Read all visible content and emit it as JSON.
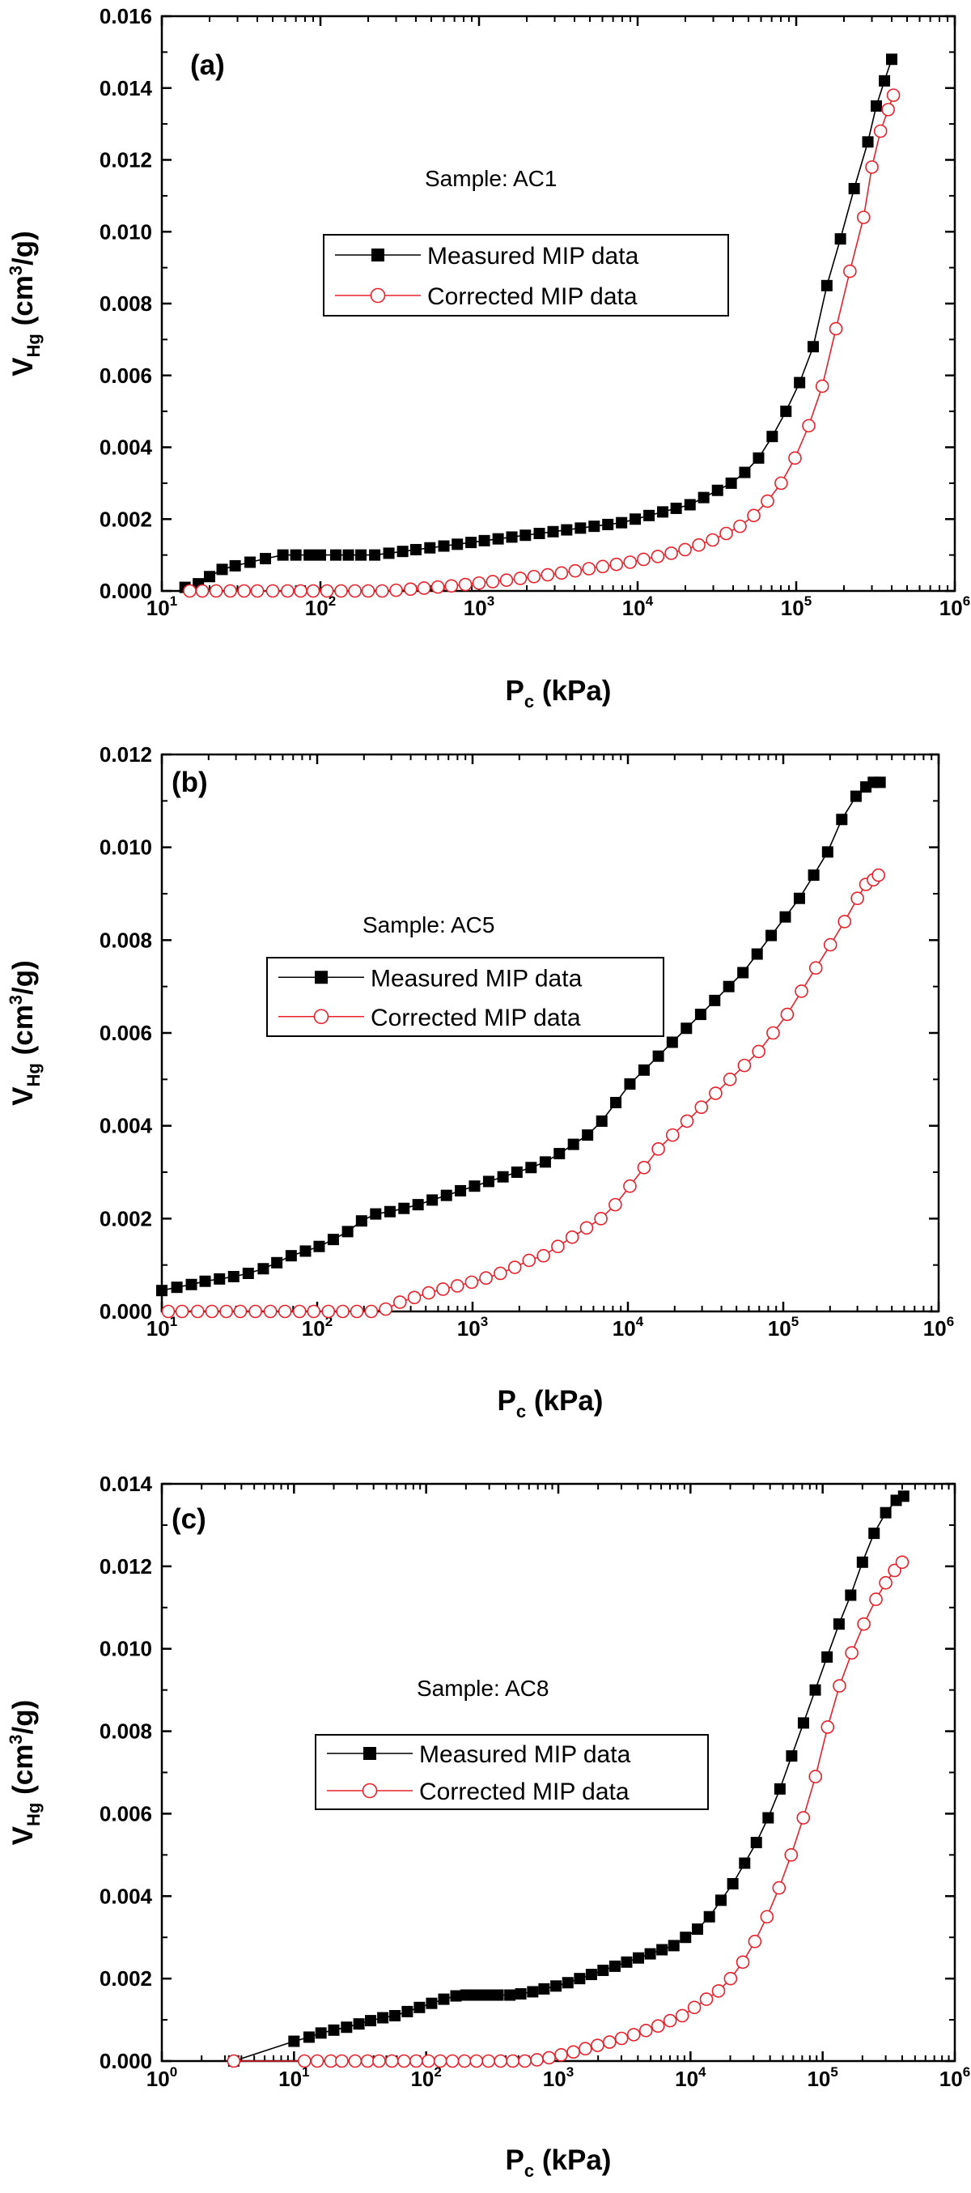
{
  "chart_data": [
    {
      "type": "scatter",
      "panel_label": "(a)",
      "annotation": "Sample: AC1",
      "xlabel": "P",
      "xlabel_sub": "c",
      "xlabel_unit": " (kPa)",
      "ylabel": "V",
      "ylabel_sub": "Hg",
      "ylabel_unit_pre": " (cm",
      "ylabel_unit_sup": "3",
      "ylabel_unit_post": "/g)",
      "x_scale": "log",
      "xlim": [
        10,
        1000000
      ],
      "ylim": [
        0,
        0.016
      ],
      "y_ticks": [
        "0.000",
        "0.002",
        "0.004",
        "0.006",
        "0.008",
        "0.010",
        "0.012",
        "0.014",
        "0.016"
      ],
      "x_ticks": [
        {
          "base": "10",
          "exp": "1"
        },
        {
          "base": "10",
          "exp": "2"
        },
        {
          "base": "10",
          "exp": "3"
        },
        {
          "base": "10",
          "exp": "4"
        },
        {
          "base": "10",
          "exp": "5"
        },
        {
          "base": "10",
          "exp": "6"
        }
      ],
      "legend": [
        "Measured MIP data",
        "Corrected MIP data"
      ],
      "legend_position": "center-left",
      "grid": false,
      "series": [
        {
          "name": "Measured MIP data",
          "color": "#000000",
          "marker": "filled-square",
          "x": [
            14,
            17,
            20,
            24,
            29,
            36,
            45,
            58,
            70,
            85,
            100,
            125,
            150,
            180,
            220,
            270,
            330,
            400,
            490,
            600,
            730,
            890,
            1080,
            1320,
            1610,
            1960,
            2400,
            2930,
            3570,
            4360,
            5320,
            6490,
            7920,
            9660,
            11800,
            14400,
            17500,
            21400,
            26100,
            31900,
            38900,
            47400,
            57900,
            70600,
            86100,
            105000,
            128000,
            156000,
            190000,
            232000,
            283000,
            320000,
            360000,
            400000
          ],
          "y": [
            0.0001,
            0.0002,
            0.0004,
            0.0006,
            0.0007,
            0.0008,
            0.0009,
            0.001,
            0.001,
            0.001,
            0.001,
            0.001,
            0.001,
            0.001,
            0.001,
            0.00105,
            0.0011,
            0.00115,
            0.0012,
            0.00125,
            0.0013,
            0.00135,
            0.0014,
            0.00145,
            0.0015,
            0.00155,
            0.0016,
            0.00165,
            0.0017,
            0.00175,
            0.0018,
            0.00185,
            0.0019,
            0.002,
            0.0021,
            0.0022,
            0.0023,
            0.0024,
            0.0026,
            0.0028,
            0.003,
            0.0033,
            0.0037,
            0.0043,
            0.005,
            0.0058,
            0.0068,
            0.0085,
            0.0098,
            0.0112,
            0.0125,
            0.0135,
            0.0142,
            0.0148
          ]
        },
        {
          "name": "Corrected MIP data",
          "color": "#e8202a",
          "marker": "open-circle",
          "x": [
            15,
            18,
            22,
            27,
            33,
            40,
            50,
            62,
            75,
            90,
            110,
            135,
            165,
            200,
            245,
            300,
            370,
            450,
            550,
            670,
            820,
            1000,
            1220,
            1490,
            1820,
            2220,
            2710,
            3310,
            4040,
            4930,
            6020,
            7350,
            8970,
            10900,
            13400,
            16300,
            19900,
            24300,
            29700,
            36200,
            44200,
            54000,
            65900,
            80400,
            98200,
            120000,
            146000,
            178000,
            218000,
            266000,
            300000,
            340000,
            380000,
            410000
          ],
          "y": [
            0,
            0,
            0,
            0,
            0,
            0,
            0,
            0,
            0,
            0,
            0,
            0,
            0,
            0,
            0,
            2e-05,
            5e-05,
            8e-05,
            0.00011,
            0.00014,
            0.00018,
            0.00022,
            0.00026,
            0.0003,
            0.00035,
            0.0004,
            0.00045,
            0.0005,
            0.00056,
            0.00062,
            0.00068,
            0.00074,
            0.0008,
            0.00088,
            0.00096,
            0.00105,
            0.00115,
            0.00128,
            0.00142,
            0.0016,
            0.0018,
            0.0021,
            0.0025,
            0.003,
            0.0037,
            0.0046,
            0.0057,
            0.0073,
            0.0089,
            0.0104,
            0.0118,
            0.0128,
            0.0134,
            0.0138
          ]
        }
      ]
    },
    {
      "type": "scatter",
      "panel_label": "(b)",
      "annotation": "Sample: AC5",
      "xlabel": "P",
      "xlabel_sub": "c",
      "xlabel_unit": " (kPa)",
      "ylabel": "V",
      "ylabel_sub": "Hg",
      "ylabel_unit_pre": " (cm",
      "ylabel_unit_sup": "3",
      "ylabel_unit_post": "/g)",
      "x_scale": "log",
      "xlim": [
        10,
        1000000
      ],
      "ylim": [
        0,
        0.012
      ],
      "y_ticks": [
        "0.000",
        "0.002",
        "0.004",
        "0.006",
        "0.008",
        "0.010",
        "0.012"
      ],
      "x_ticks": [
        {
          "base": "10",
          "exp": "1"
        },
        {
          "base": "10",
          "exp": "2"
        },
        {
          "base": "10",
          "exp": "3"
        },
        {
          "base": "10",
          "exp": "4"
        },
        {
          "base": "10",
          "exp": "5"
        },
        {
          "base": "10",
          "exp": "6"
        }
      ],
      "legend": [
        "Measured MIP data",
        "Corrected MIP data"
      ],
      "legend_position": "center-left",
      "grid": false,
      "series": [
        {
          "name": "Measured MIP data",
          "color": "#000000",
          "marker": "filled-square",
          "x": [
            10,
            12.5,
            15.5,
            19,
            23.5,
            29,
            36,
            45,
            55,
            68,
            84,
            103,
            127,
            157,
            193,
            238,
            294,
            362,
            446,
            550,
            679,
            836,
            1030,
            1270,
            1570,
            1930,
            2380,
            2940,
            3620,
            4460,
            5500,
            6790,
            8360,
            10300,
            12700,
            15700,
            19300,
            23800,
            29400,
            36200,
            44600,
            55000,
            67900,
            83600,
            103000,
            127000,
            157000,
            193000,
            238000,
            294000,
            340000,
            380000,
            420000
          ],
          "y": [
            0.00045,
            0.00052,
            0.00058,
            0.00065,
            0.0007,
            0.00075,
            0.00082,
            0.00092,
            0.00105,
            0.0012,
            0.0013,
            0.0014,
            0.00155,
            0.00172,
            0.00195,
            0.0021,
            0.00215,
            0.00222,
            0.0023,
            0.0024,
            0.0025,
            0.0026,
            0.0027,
            0.0028,
            0.0029,
            0.003,
            0.0031,
            0.00322,
            0.0034,
            0.0036,
            0.0038,
            0.0041,
            0.0045,
            0.0049,
            0.0052,
            0.0055,
            0.0058,
            0.0061,
            0.0064,
            0.0067,
            0.007,
            0.0073,
            0.0077,
            0.0081,
            0.0085,
            0.0089,
            0.0094,
            0.0099,
            0.0106,
            0.0111,
            0.0113,
            0.0114,
            0.0114
          ]
        },
        {
          "name": "Corrected MIP data",
          "color": "#e8202a",
          "marker": "open-circle",
          "x": [
            11,
            13.5,
            17,
            21,
            26,
            32,
            40,
            50,
            62,
            77,
            95,
            118,
            146,
            180,
            223,
            276,
            341,
            422,
            522,
            645,
            798,
            987,
            1220,
            1510,
            1870,
            2310,
            2860,
            3540,
            4380,
            5420,
            6700,
            8290,
            10300,
            12700,
            15700,
            19400,
            24000,
            29700,
            36700,
            45400,
            56200,
            69500,
            86000,
            106000,
            131000,
            162000,
            201000,
            248000,
            300000,
            340000,
            380000,
            410000
          ],
          "y": [
            0,
            0,
            0,
            0,
            0,
            0,
            0,
            0,
            0,
            0,
            0,
            0,
            0,
            0,
            0,
            5e-05,
            0.0002,
            0.0003,
            0.0004,
            0.00048,
            0.00055,
            0.00063,
            0.00072,
            0.00082,
            0.00095,
            0.0011,
            0.0012,
            0.0014,
            0.0016,
            0.0018,
            0.002,
            0.0023,
            0.0027,
            0.0031,
            0.0035,
            0.0038,
            0.0041,
            0.0044,
            0.0047,
            0.005,
            0.0053,
            0.0056,
            0.006,
            0.0064,
            0.0069,
            0.0074,
            0.0079,
            0.0084,
            0.0089,
            0.0092,
            0.0093,
            0.0094
          ]
        }
      ]
    },
    {
      "type": "scatter",
      "panel_label": "(c)",
      "annotation": "Sample: AC8",
      "xlabel": "P",
      "xlabel_sub": "c",
      "xlabel_unit": " (kPa)",
      "ylabel": "V",
      "ylabel_sub": "Hg",
      "ylabel_unit_pre": " (cm",
      "ylabel_unit_sup": "3",
      "ylabel_unit_post": "/g)",
      "x_scale": "log",
      "xlim": [
        1,
        1000000
      ],
      "ylim": [
        0,
        0.014
      ],
      "y_ticks": [
        "0.000",
        "0.002",
        "0.004",
        "0.006",
        "0.008",
        "0.010",
        "0.012",
        "0.014"
      ],
      "x_ticks": [
        {
          "base": "10",
          "exp": "0"
        },
        {
          "base": "10",
          "exp": "1"
        },
        {
          "base": "10",
          "exp": "2"
        },
        {
          "base": "10",
          "exp": "3"
        },
        {
          "base": "10",
          "exp": "4"
        },
        {
          "base": "10",
          "exp": "5"
        },
        {
          "base": "10",
          "exp": "6"
        }
      ],
      "legend": [
        "Measured MIP data",
        "Corrected MIP data"
      ],
      "legend_position": "center-left",
      "grid": false,
      "series": [
        {
          "name": "Measured MIP data",
          "color": "#000000",
          "marker": "filled-square",
          "x": [
            3.5,
            10,
            13,
            16,
            20,
            25,
            31,
            38,
            47,
            58,
            72,
            89,
            110,
            136,
            168,
            200,
            240,
            290,
            350,
            430,
            520,
            640,
            780,
            960,
            1180,
            1450,
            1780,
            2180,
            2680,
            3290,
            4040,
            4960,
            6090,
            7480,
            9180,
            11300,
            13900,
            17000,
            20900,
            25700,
            31500,
            38700,
            47500,
            58300,
            71600,
            87900,
            108000,
            133000,
            163000,
            200000,
            245000,
            300000,
            360000,
            410000
          ],
          "y": [
            0,
            0.00048,
            0.00058,
            0.00068,
            0.00075,
            0.00082,
            0.0009,
            0.00098,
            0.00105,
            0.0011,
            0.0012,
            0.0013,
            0.0014,
            0.0015,
            0.00158,
            0.0016,
            0.0016,
            0.0016,
            0.0016,
            0.0016,
            0.00163,
            0.00168,
            0.00175,
            0.00182,
            0.0019,
            0.002,
            0.0021,
            0.0022,
            0.0023,
            0.0024,
            0.0025,
            0.0026,
            0.0027,
            0.0028,
            0.003,
            0.0032,
            0.0035,
            0.0039,
            0.0043,
            0.0048,
            0.0053,
            0.0059,
            0.0066,
            0.0074,
            0.0082,
            0.009,
            0.0098,
            0.0106,
            0.0113,
            0.0121,
            0.0128,
            0.0133,
            0.0136,
            0.0137
          ]
        },
        {
          "name": "Corrected MIP data",
          "color": "#e8202a",
          "marker": "open-circle",
          "x": [
            3.5,
            12,
            15,
            19,
            23,
            29,
            36,
            44,
            55,
            68,
            84,
            104,
            128,
            158,
            195,
            240,
            296,
            366,
            452,
            558,
            689,
            851,
            1050,
            1300,
            1600,
            1980,
            2440,
            3010,
            3720,
            4600,
            5680,
            7010,
            8660,
            10700,
            13200,
            16300,
            20100,
            24900,
            30700,
            37900,
            46800,
            57800,
            71400,
            88200,
            109000,
            134000,
            166000,
            205000,
            253000,
            300000,
            350000,
            400000
          ],
          "y": [
            0,
            0,
            0,
            0,
            0,
            0,
            0,
            0,
            0,
            0,
            0,
            0,
            0,
            0,
            0,
            0,
            0,
            0,
            0,
            0,
            3e-05,
            8e-05,
            0.00015,
            0.00022,
            0.0003,
            0.00038,
            0.00046,
            0.00055,
            0.00064,
            0.00074,
            0.00085,
            0.00098,
            0.0011,
            0.0013,
            0.0015,
            0.0017,
            0.002,
            0.0024,
            0.0029,
            0.0035,
            0.0042,
            0.005,
            0.0059,
            0.0069,
            0.0081,
            0.0091,
            0.0099,
            0.0106,
            0.0112,
            0.0116,
            0.0119,
            0.0121
          ]
        }
      ]
    }
  ]
}
